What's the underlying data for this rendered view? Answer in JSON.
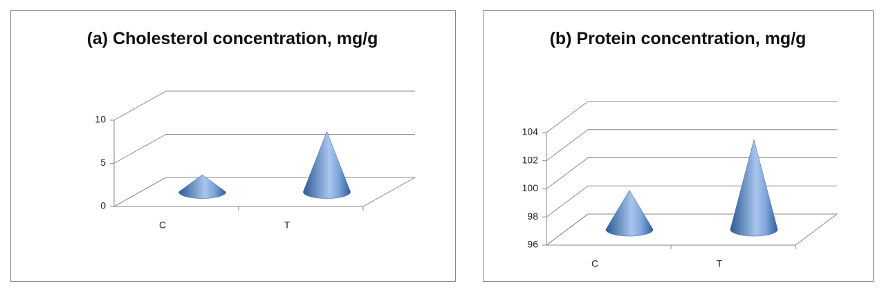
{
  "chart_data": [
    {
      "type": "cone",
      "title": "(a) Cholesterol concentration, mg/g",
      "categories": [
        "C",
        "T"
      ],
      "values": [
        2,
        7
      ],
      "color": "#4f81bd",
      "ylim": [
        0,
        10
      ],
      "yticks": [
        0,
        5,
        10
      ],
      "grid": true
    },
    {
      "type": "cone",
      "title": "(b) Protein concentration, mg/g",
      "categories": [
        "C",
        "T"
      ],
      "values": [
        98.8,
        102.4
      ],
      "color": "#4f81bd",
      "ylim": [
        96,
        104
      ],
      "yticks": [
        96,
        98,
        100,
        102,
        104
      ],
      "grid": true
    }
  ]
}
